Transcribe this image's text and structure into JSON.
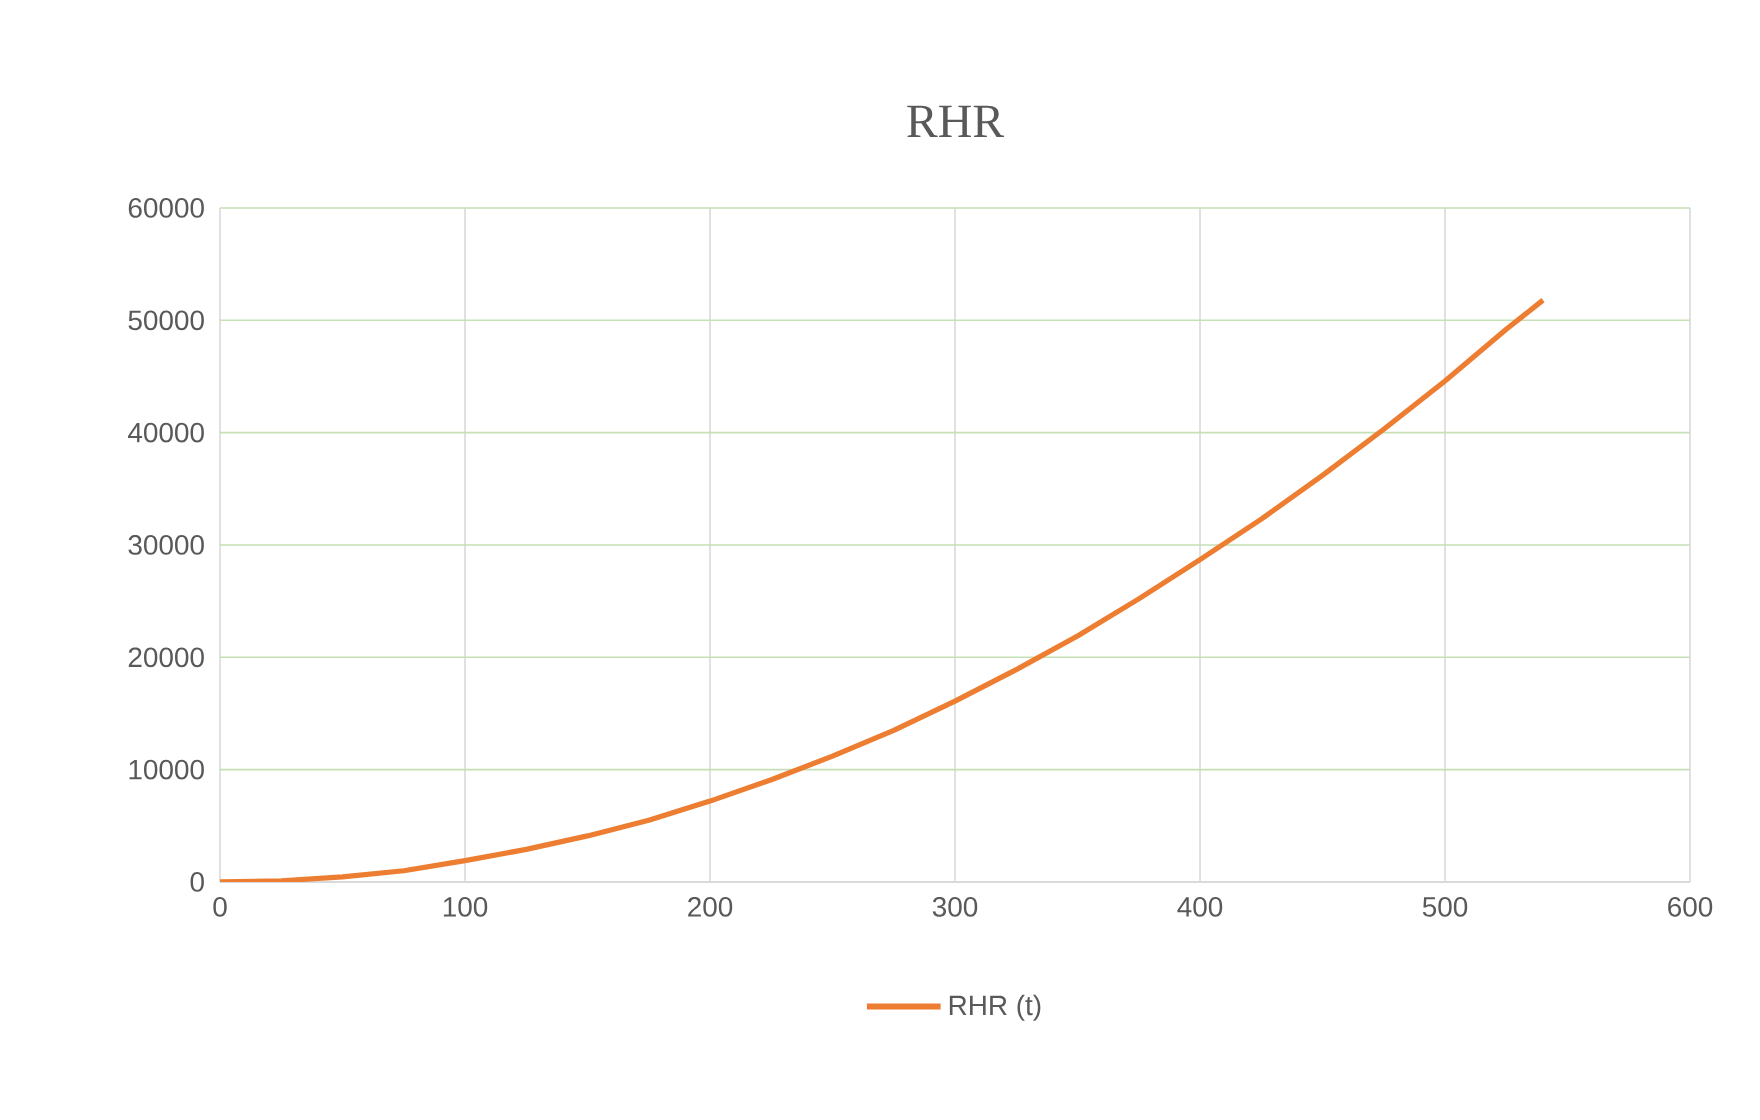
{
  "chart_data": {
    "type": "line",
    "title": "RHR",
    "x": [
      0,
      25,
      50,
      75,
      100,
      125,
      150,
      175,
      200,
      225,
      250,
      275,
      300,
      325,
      350,
      375,
      400,
      425,
      450,
      475,
      500,
      525,
      540
    ],
    "series": [
      {
        "name": "RHR (t)",
        "color": "#ed7d31",
        "values": [
          0,
          110,
          450,
          1000,
          1900,
          2900,
          4100,
          5500,
          7200,
          9100,
          11200,
          13500,
          16100,
          18900,
          21900,
          25200,
          28700,
          32300,
          36200,
          40300,
          44600,
          49200,
          51800
        ]
      }
    ],
    "xlim": [
      0,
      600
    ],
    "xticks": [
      0,
      100,
      200,
      300,
      400,
      500,
      600
    ],
    "ylim": [
      0,
      60000
    ],
    "yticks": [
      0,
      10000,
      20000,
      30000,
      40000,
      50000,
      60000
    ],
    "grid": true,
    "legend": "bottom",
    "marker": "none",
    "line_style": "solid"
  }
}
